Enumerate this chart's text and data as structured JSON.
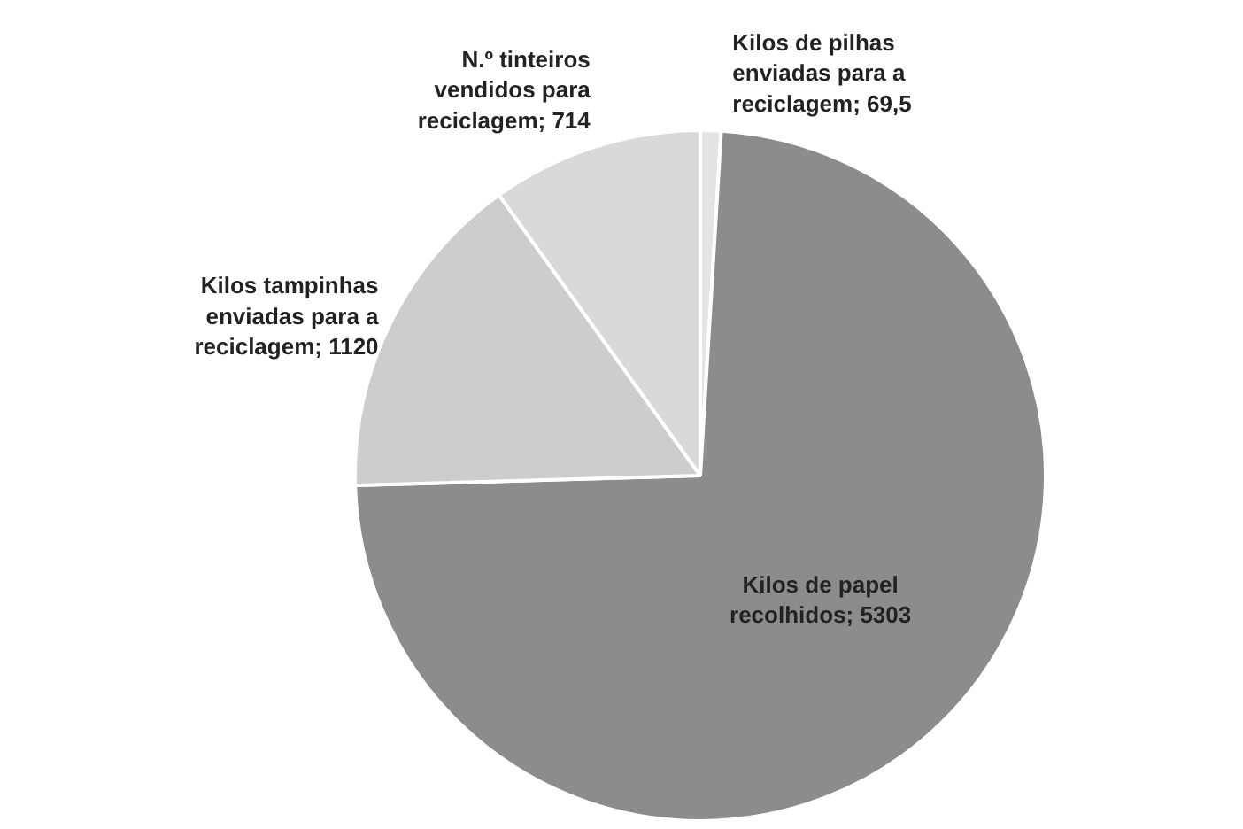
{
  "chart_data": {
    "type": "pie",
    "categories": [
      "Kilos de pilhas enviadas para a reciclagem",
      "Kilos de papel recolhidos",
      "Kilos tampinhas enviadas para a reciclagem",
      "N.º tinteiros vendidos para reciclagem"
    ],
    "values": [
      69.5,
      5303,
      1120,
      714
    ],
    "value_labels": [
      "69,5",
      "5303",
      "1120",
      "714"
    ],
    "colors": [
      "#e4e4e4",
      "#8c8c8c",
      "#cdcdcd",
      "#d9d9d9"
    ],
    "legend": false
  }
}
